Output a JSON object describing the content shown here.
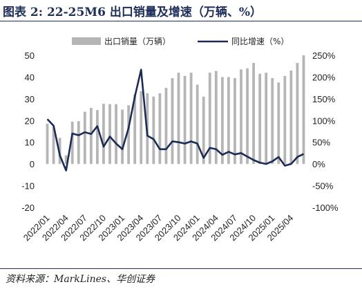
{
  "header": {
    "title": "图表 2:  22-25M6 出口销量及增速（万辆、%）"
  },
  "source": "资料来源：MarkLines、华创证券",
  "colors": {
    "bar": "#b5b5b5",
    "line": "#1b2b55",
    "rule": "#1e2e5a"
  },
  "chart_data": {
    "type": "bar+line",
    "x": [
      "2022/01",
      "2022/02",
      "2022/03",
      "2022/04",
      "2022/05",
      "2022/06",
      "2022/07",
      "2022/08",
      "2022/09",
      "2022/10",
      "2022/11",
      "2022/12",
      "2023/01",
      "2023/02",
      "2023/03",
      "2023/04",
      "2023/05",
      "2023/06",
      "2023/07",
      "2023/08",
      "2023/09",
      "2023/10",
      "2023/11",
      "2023/12",
      "2024/01",
      "2024/02",
      "2024/03",
      "2024/04",
      "2024/05",
      "2024/06",
      "2024/07",
      "2024/08",
      "2024/09",
      "2024/10",
      "2024/11",
      "2024/12",
      "2025/01",
      "2025/02",
      "2025/03",
      "2025/04",
      "2025/05",
      "2025/06"
    ],
    "xtick_labels": [
      "2022/01",
      "2022/04",
      "2022/07",
      "2022/10",
      "2023/01",
      "2023/04",
      "2023/07",
      "2023/10",
      "2024/01",
      "2024/04",
      "2024/07",
      "2024/10",
      "2025/01",
      "2025/04"
    ],
    "series": [
      {
        "name": "出口销量（万辆）",
        "type": "bar",
        "axis": "left",
        "values": [
          18.5,
          17.0,
          12.0,
          4.0,
          19.5,
          19.7,
          24.0,
          25.8,
          24.8,
          27.7,
          27.5,
          27.5,
          25.0,
          27.0,
          32.0,
          33.5,
          32.5,
          31.0,
          32.5,
          35.0,
          39.5,
          42.0,
          40.5,
          42.0,
          36.5,
          31.0,
          42.0,
          42.8,
          40.0,
          40.0,
          39.5,
          43.5,
          44.0,
          46.5,
          41.5,
          42.0,
          39.5,
          37.5,
          40.5,
          43.0,
          46.5,
          50.0
        ]
      },
      {
        "name": "同比增速（%）",
        "type": "line",
        "axis": "right",
        "values": [
          103,
          88,
          20,
          -15,
          70,
          66,
          73,
          69,
          87,
          40,
          63,
          47,
          34,
          83,
          155,
          217,
          65,
          57,
          34,
          34,
          52,
          50,
          47,
          52,
          47,
          14,
          37,
          34,
          21,
          28,
          22,
          25,
          17,
          9,
          3,
          0,
          6,
          16,
          -4,
          0,
          16,
          23
        ]
      }
    ],
    "y_left": {
      "ticks": [
        -20,
        -10,
        0,
        10,
        20,
        30,
        40,
        50
      ],
      "ylim": [
        -20,
        50
      ]
    },
    "y_right": {
      "ticks": [
        "-100%",
        "-50%",
        "0%",
        "50%",
        "100%",
        "150%",
        "200%",
        "250%"
      ],
      "ylim": [
        -100,
        250
      ]
    },
    "legend": {
      "placement": "top",
      "items": [
        "出口销量（万辆）",
        "同比增速（%）"
      ]
    }
  }
}
